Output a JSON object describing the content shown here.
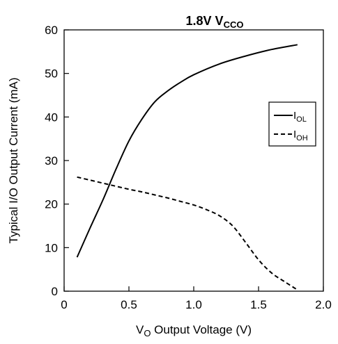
{
  "chart_data": {
    "type": "line",
    "title": {
      "main": "1.8V V",
      "sub": "CCO"
    },
    "xlabel": {
      "pre": "V",
      "sub": "O",
      "post": " Output Voltage (V)"
    },
    "ylabel": "Typical I/O Output Current (mA)",
    "xlim": [
      0,
      2.0
    ],
    "ylim": [
      0,
      60
    ],
    "xticks": [
      0,
      0.5,
      1.0,
      1.5,
      2.0
    ],
    "xtick_labels": [
      "0",
      "0.5",
      "1.0",
      "1.5",
      "2.0"
    ],
    "yticks": [
      0,
      10,
      20,
      30,
      40,
      50,
      60
    ],
    "ytick_labels": [
      "0",
      "10",
      "20",
      "30",
      "40",
      "50",
      "60"
    ],
    "grid": false,
    "legend_position": "upper-right",
    "series": [
      {
        "name": {
          "pre": "I",
          "sub": "OL"
        },
        "style": "solid",
        "color": "#000000",
        "x": [
          0.1,
          0.2,
          0.3,
          0.4,
          0.5,
          0.6,
          0.7,
          0.8,
          0.9,
          1.0,
          1.2,
          1.4,
          1.6,
          1.8
        ],
        "y": [
          7.8,
          14.5,
          21.0,
          28.0,
          34.5,
          39.5,
          43.5,
          46.0,
          48.0,
          49.7,
          52.2,
          54.0,
          55.5,
          56.6
        ]
      },
      {
        "name": {
          "pre": "I",
          "sub": "OH"
        },
        "style": "dashed",
        "color": "#000000",
        "x": [
          0.1,
          0.2,
          0.3,
          0.4,
          0.5,
          0.6,
          0.7,
          0.8,
          0.9,
          1.0,
          1.1,
          1.2,
          1.3,
          1.4,
          1.5,
          1.6,
          1.7,
          1.8
        ],
        "y": [
          26.2,
          25.5,
          24.8,
          24.1,
          23.4,
          22.8,
          22.1,
          21.4,
          20.6,
          19.8,
          18.7,
          17.3,
          15.0,
          11.2,
          7.2,
          4.2,
          2.2,
          0.3
        ]
      }
    ]
  }
}
